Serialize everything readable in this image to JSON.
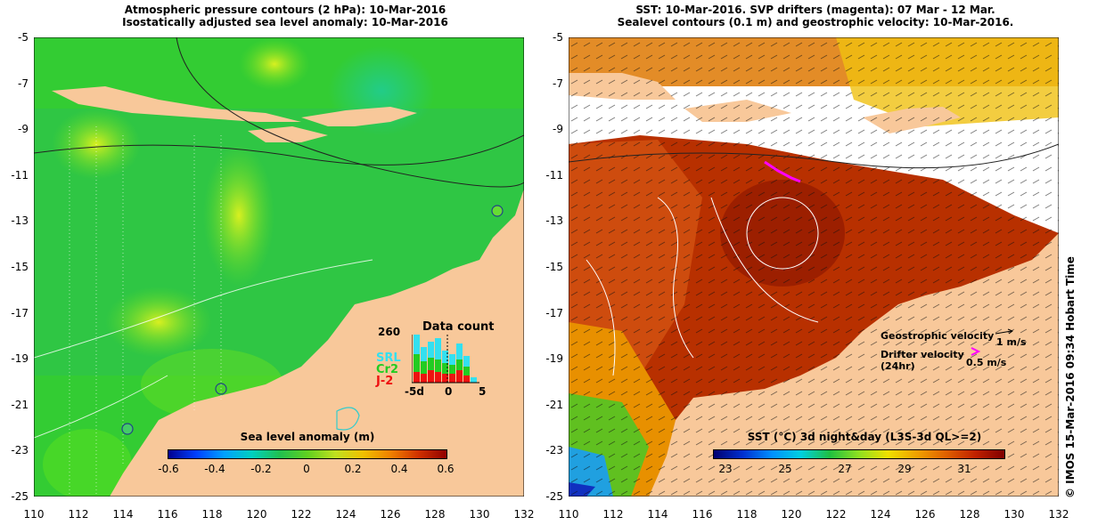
{
  "left_panel": {
    "title_line1": "Atmospheric pressure contours (2 hPa): 10-Mar-2016",
    "title_line2": "Isostatically adjusted sea level anomaly: 10-Mar-2016",
    "y_ticks": [
      "-5",
      "-7",
      "-9",
      "-11",
      "-13",
      "-15",
      "-17",
      "-19",
      "-21",
      "-23",
      "-25"
    ],
    "x_ticks": [
      "110",
      "112",
      "114",
      "116",
      "118",
      "120",
      "122",
      "124",
      "126",
      "128",
      "130",
      "132"
    ],
    "colorbar": {
      "label": "Sea level anomaly (m)",
      "ticks": [
        "-0.6",
        "-0.4",
        "-0.2",
        "0",
        "0.2",
        "0.4",
        "0.6"
      ]
    },
    "data_count": {
      "title": "Data count",
      "max_label": "260",
      "series": [
        "SRL",
        "Cr2",
        "J-2"
      ],
      "x_ticks": [
        "-5d",
        "0",
        "5"
      ],
      "series_colors": {
        "SRL": "#33e0f0",
        "Cr2": "#22cc22",
        "J-2": "#ee1111"
      }
    }
  },
  "right_panel": {
    "title_line1": "SST: 10-Mar-2016. SVP drifters (magenta): 07 Mar - 12 Mar.",
    "title_line2": "Sealevel contours (0.1 m) and geostrophic velocity: 10-Mar-2016.",
    "y_ticks": [
      "-5",
      "-7",
      "-9",
      "-11",
      "-13",
      "-15",
      "-17",
      "-19",
      "-21",
      "-23",
      "-25"
    ],
    "x_ticks": [
      "110",
      "112",
      "114",
      "116",
      "118",
      "120",
      "122",
      "124",
      "126",
      "128",
      "130",
      "132"
    ],
    "colorbar": {
      "label": "SST (°C) 3d night&day (L3S-3d QL>=2)",
      "ticks": [
        "23",
        "25",
        "27",
        "29",
        "31"
      ]
    },
    "legend": {
      "geo_label": "Geostrophic velocity",
      "geo_scale": "1 m/s",
      "drifter_label": "Drifter velocity",
      "drifter_sub": "(24hr)",
      "drifter_scale": "0.5 m/s"
    }
  },
  "credit": "© IMOS 15-Mar-2016 09:34 Hobart Time",
  "colors": {
    "land": "#f8c89a",
    "sea_base": "#33cc33",
    "sst_warm": "#b83000"
  }
}
